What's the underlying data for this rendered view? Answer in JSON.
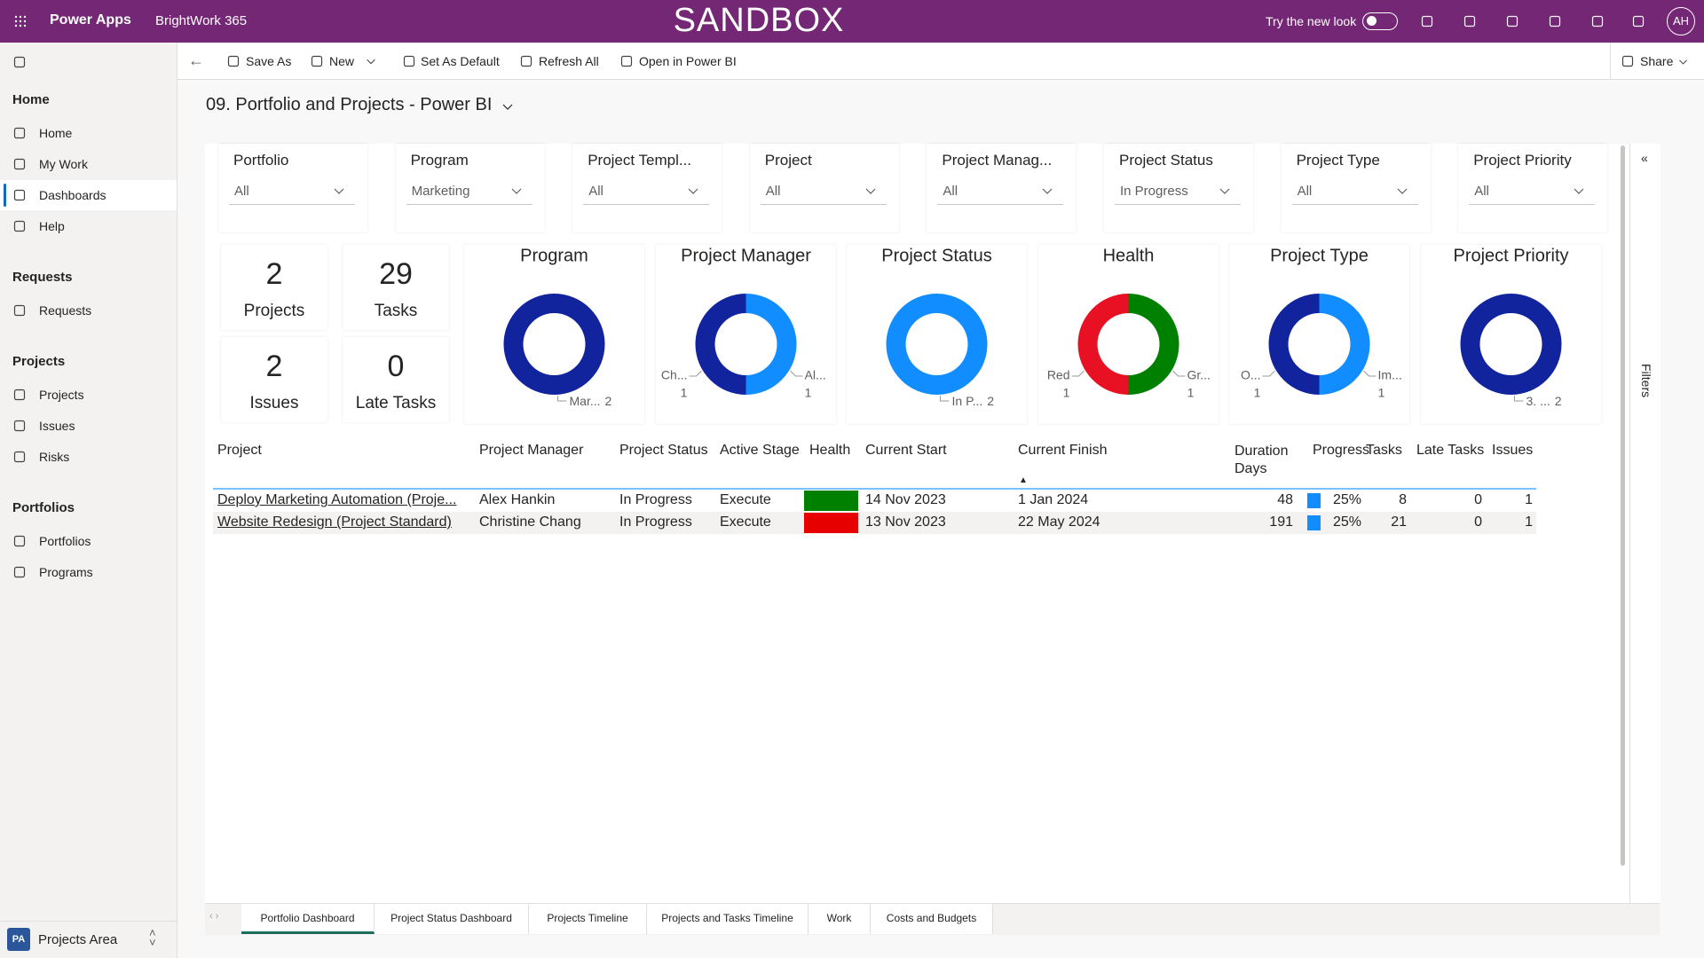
{
  "topbar": {
    "app": "Power Apps",
    "env": "BrightWork 365",
    "banner": "SANDBOX",
    "try_new_look": "Try the new look",
    "avatar": "AH"
  },
  "commandbar": {
    "items": [
      "Save As",
      "New",
      "Set As Default",
      "Refresh All",
      "Open in Power BI"
    ],
    "share": "Share"
  },
  "sidebar": {
    "sections": [
      {
        "title": "Home",
        "items": [
          "Home",
          "My Work",
          "Dashboards",
          "Help"
        ]
      },
      {
        "title": "Requests",
        "items": [
          "Requests"
        ]
      },
      {
        "title": "Projects",
        "items": [
          "Projects",
          "Issues",
          "Risks"
        ]
      },
      {
        "title": "Portfolios",
        "items": [
          "Portfolios",
          "Programs"
        ]
      }
    ],
    "area_badge": "PA",
    "area": "Projects Area"
  },
  "report": {
    "title": "09. Portfolio and Projects - Power BI",
    "filters": "Filters",
    "slicers": [
      {
        "label": "Portfolio",
        "value": "All"
      },
      {
        "label": "Program",
        "value": "Marketing"
      },
      {
        "label": "Project Templ...",
        "value": "All"
      },
      {
        "label": "Project",
        "value": "All"
      },
      {
        "label": "Project Manag...",
        "value": "All"
      },
      {
        "label": "Project Status",
        "value": "In Progress"
      },
      {
        "label": "Project Type",
        "value": "All"
      },
      {
        "label": "Project Priority",
        "value": "All"
      }
    ],
    "cards": [
      {
        "value": 2,
        "label": "Projects"
      },
      {
        "value": 29,
        "label": "Tasks"
      },
      {
        "value": 2,
        "label": "Issues"
      },
      {
        "value": 0,
        "label": "Late Tasks"
      }
    ],
    "donuts": [
      {
        "title": "Program",
        "segments": [
          {
            "label": "Mar...",
            "value": 2,
            "color": "#12239e"
          }
        ]
      },
      {
        "title": "Project Manager",
        "segments": [
          {
            "label": "Al...",
            "value": 1,
            "color": "#118dff"
          },
          {
            "label": "Ch...",
            "value": 1,
            "color": "#12239e"
          }
        ]
      },
      {
        "title": "Project Status",
        "segments": [
          {
            "label": "In P...",
            "value": 2,
            "color": "#118dff"
          }
        ]
      },
      {
        "title": "Health",
        "segments": [
          {
            "label": "Gr...",
            "value": 1,
            "color": "#008000"
          },
          {
            "label": "Red",
            "value": 1,
            "color": "#e81123"
          }
        ]
      },
      {
        "title": "Project Type",
        "segments": [
          {
            "label": "Im...",
            "value": 1,
            "color": "#118dff"
          },
          {
            "label": "O...",
            "value": 1,
            "color": "#12239e"
          }
        ]
      },
      {
        "title": "Project Priority",
        "segments": [
          {
            "label": "3. ...",
            "value": 2,
            "color": "#12239e"
          }
        ]
      }
    ],
    "table": {
      "columns": [
        "Project",
        "Project Manager",
        "Project Status",
        "Active Stage",
        "Health",
        "Current Start",
        "Current Finish",
        "Duration Days",
        "Progress",
        "Tasks",
        "Late Tasks",
        "Issues"
      ],
      "rows": [
        {
          "project": "Deploy Marketing Automation (Proje...",
          "manager": "Alex Hankin",
          "status": "In Progress",
          "stage": "Execute",
          "health_color": "#008000",
          "start": "14 Nov 2023",
          "finish": "1 Jan 2024",
          "duration": 48,
          "progress": 25,
          "progress_label": "25%",
          "tasks": 8,
          "late_tasks": 0,
          "issues": 1
        },
        {
          "project": "Website Redesign (Project Standard)",
          "manager": "Christine Chang",
          "status": "In Progress",
          "stage": "Execute",
          "health_color": "#e60000",
          "start": "13 Nov 2023",
          "finish": "22 May 2024",
          "duration": 191,
          "progress": 25,
          "progress_label": "25%",
          "tasks": 21,
          "late_tasks": 0,
          "issues": 1
        }
      ]
    },
    "tabs": [
      "Portfolio Dashboard",
      "Project Status Dashboard",
      "Projects Timeline",
      "Projects and Tasks Timeline",
      "Work",
      "Costs and Budgets"
    ]
  }
}
